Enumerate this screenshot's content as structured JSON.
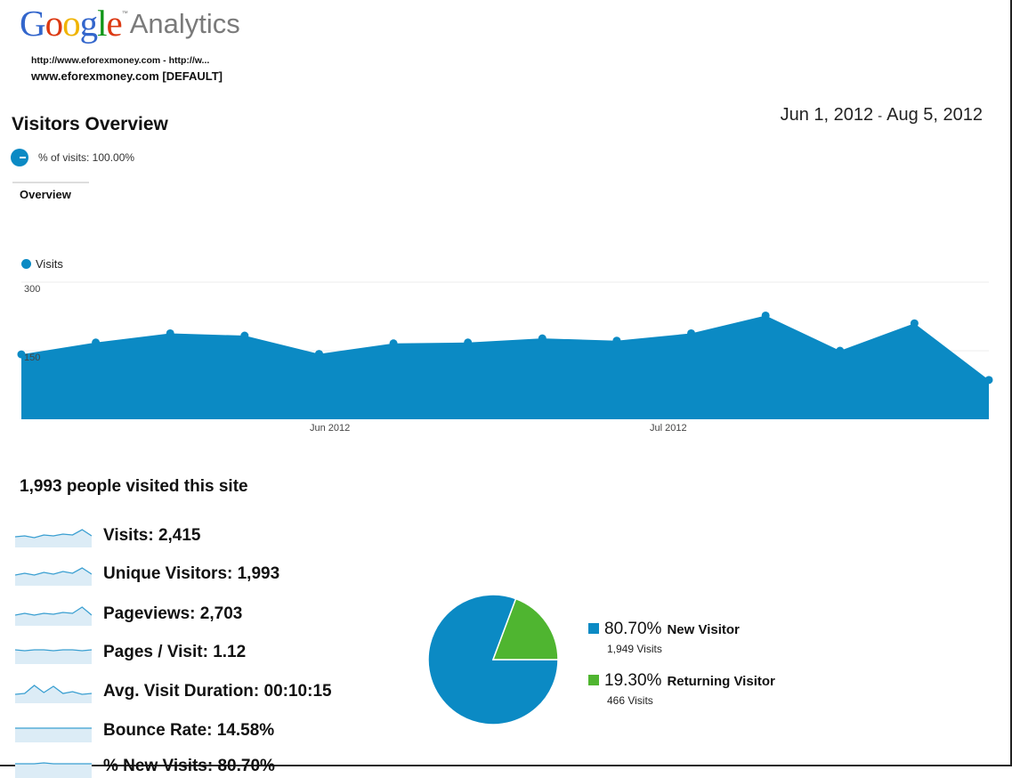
{
  "brand": {
    "google": "Google",
    "product": "Analytics"
  },
  "site": {
    "url": "http://www.eforexmoney.com - http://w...",
    "profile": "www.eforexmoney.com [DEFAULT]"
  },
  "report": {
    "title": "Visitors Overview",
    "date_start": "Jun 1, 2012",
    "date_sep": "-",
    "date_end": "Aug 5, 2012",
    "segment_label": "% of visits: 100.00%",
    "tab": "Overview"
  },
  "colors": {
    "visits": "#0b8ac4",
    "new_visitor": "#0b8ac4",
    "returning_visitor": "#4fb530"
  },
  "chart_data": {
    "type": "area",
    "legend": "Visits",
    "x": [
      "2012-05-31",
      "2012-06-04",
      "2012-06-08",
      "2012-06-12",
      "2012-06-16",
      "2012-06-20",
      "2012-06-24",
      "2012-06-28",
      "2012-07-02",
      "2012-07-06",
      "2012-07-10",
      "2012-07-14",
      "2012-07-18",
      "2012-07-22"
    ],
    "values": [
      142,
      168,
      188,
      183,
      143,
      166,
      168,
      177,
      172,
      188,
      227,
      150,
      210,
      86
    ],
    "yticks": [
      "300",
      "150"
    ],
    "ylim": [
      0,
      300
    ],
    "xticks": [
      "Jun 2012",
      "Jul 2012"
    ],
    "grid": true
  },
  "summary": {
    "title": "1,993 people visited this site",
    "metrics": [
      {
        "name": "visits",
        "text": "Visits: 2,415",
        "spark": [
          14,
          13,
          15,
          12,
          13,
          11,
          12,
          6,
          13
        ]
      },
      {
        "name": "unique-visitors",
        "text": "Unique Visitors: 1,993",
        "spark": [
          14,
          12,
          14,
          11,
          13,
          10,
          12,
          6,
          13
        ]
      },
      {
        "name": "pageviews",
        "text": "Pageviews: 2,703",
        "spark": [
          14,
          12,
          14,
          12,
          13,
          11,
          12,
          5,
          14
        ]
      },
      {
        "name": "pages-per-visit",
        "text": "Pages / Visit: 1.12",
        "spark": [
          10,
          11,
          10,
          10,
          11,
          10,
          10,
          11,
          10
        ]
      },
      {
        "name": "avg-visit-duration",
        "text": "Avg. Visit Duration: 00:10:15",
        "spark": [
          16,
          15,
          6,
          14,
          7,
          15,
          13,
          16,
          15
        ]
      },
      {
        "name": "bounce-rate",
        "text": "Bounce Rate: 14.58%",
        "spark": [
          10,
          10,
          10,
          10,
          10,
          10,
          10,
          10,
          10
        ]
      },
      {
        "name": "new-visits",
        "text": "% New Visits: 80.70%",
        "spark": [
          10,
          10,
          10,
          9,
          10,
          10,
          10,
          10,
          10
        ]
      }
    ]
  },
  "visitor_pie": {
    "slices": [
      {
        "name": "New Visitor",
        "percent": 80.7,
        "pct_text": "80.70%",
        "visits_text": "1,949 Visits",
        "color": "#0b8ac4"
      },
      {
        "name": "Returning Visitor",
        "percent": 19.3,
        "pct_text": "19.30%",
        "visits_text": "466 Visits",
        "color": "#4fb530"
      }
    ]
  }
}
